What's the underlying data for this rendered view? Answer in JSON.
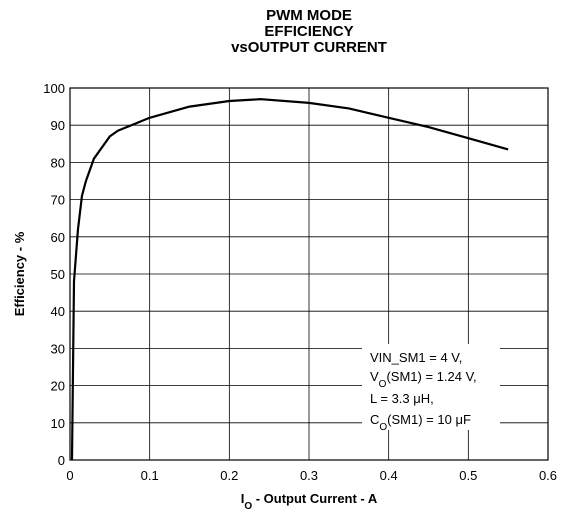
{
  "chart_data": {
    "type": "line",
    "title": [
      "PWM MODE",
      "EFFICIENCY",
      "vsOUTPUT CURRENT"
    ],
    "x_label": [
      {
        "text": "I"
      },
      {
        "text": "O",
        "sub": true
      },
      {
        "text": " - Output Current - A"
      }
    ],
    "y_label": "Efficiency - %",
    "x": [
      0.0025,
      0.005,
      0.01,
      0.015,
      0.02,
      0.03,
      0.05,
      0.06,
      0.1,
      0.15,
      0.2,
      0.24,
      0.3,
      0.35,
      0.4,
      0.45,
      0.5,
      0.55
    ],
    "series": [
      {
        "color": "#000000",
        "values": [
          0,
          48,
          62,
          71,
          75,
          81,
          87,
          88.5,
          92,
          95,
          96.5,
          97,
          96,
          94.5,
          92,
          89.5,
          86.5,
          83.5
        ]
      }
    ],
    "xlim": [
      0,
      0.6
    ],
    "xticks": [
      0,
      0.1,
      0.2,
      0.3,
      0.4,
      0.5,
      0.6
    ],
    "ylim": [
      0,
      100
    ],
    "yticks": [
      0,
      10,
      20,
      30,
      40,
      50,
      60,
      70,
      80,
      90,
      100
    ],
    "grid": true,
    "annotation": [
      [
        {
          "text": "VIN_SM1 = 4 V,"
        }
      ],
      [
        {
          "text": "V"
        },
        {
          "text": "O",
          "sub": true
        },
        {
          "text": "(SM1) = 1.24 V,"
        }
      ],
      [
        {
          "text": "L = 3.3 μH,"
        }
      ],
      [
        {
          "text": "C"
        },
        {
          "text": "O",
          "sub": true
        },
        {
          "text": "(SM1) = 10 μF"
        }
      ]
    ]
  }
}
